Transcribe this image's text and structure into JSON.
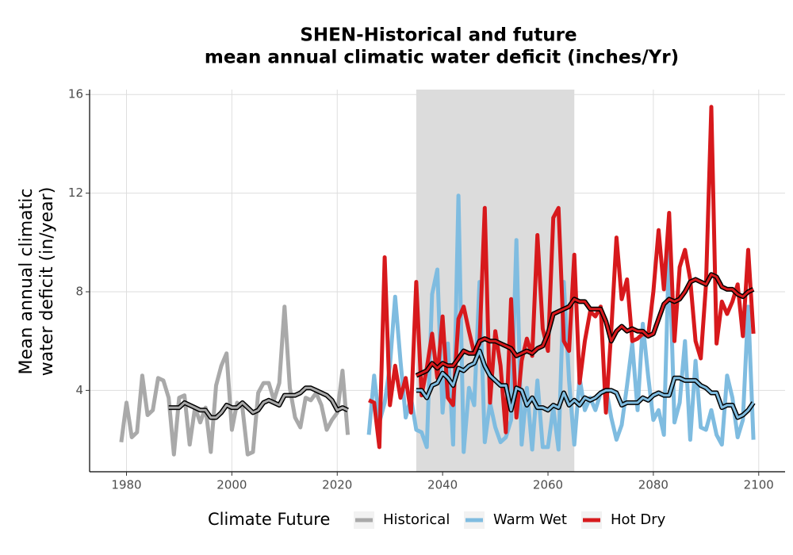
{
  "chart_data": {
    "type": "line",
    "title": [
      "SHEN-Historical and future",
      "mean annual climatic water deficit (inches/Yr)"
    ],
    "ylabel": [
      "Mean annual climatic",
      "water deficit (in/year)"
    ],
    "legend_title": "Climate Future",
    "legend_position": "bottom",
    "grid": true,
    "highlight_range": [
      2035,
      2065
    ],
    "xlim": [
      1973,
      2105
    ],
    "ylim": [
      0.7,
      16.2
    ],
    "xticks": [
      1980,
      2000,
      2020,
      2040,
      2060,
      2080,
      2100
    ],
    "yticks": [
      4,
      8,
      12,
      16
    ],
    "series": [
      {
        "name": "Historical",
        "color": "#a9a9a9",
        "x": [
          1979,
          1980,
          1981,
          1982,
          1983,
          1984,
          1985,
          1986,
          1987,
          1988,
          1989,
          1990,
          1991,
          1992,
          1993,
          1994,
          1995,
          1996,
          1997,
          1998,
          1999,
          2000,
          2001,
          2002,
          2003,
          2004,
          2005,
          2006,
          2007,
          2008,
          2009,
          2010,
          2011,
          2012,
          2013,
          2014,
          2015,
          2016,
          2017,
          2018,
          2019,
          2020,
          2021,
          2022
        ],
        "values": [
          1.9,
          3.5,
          2.1,
          2.3,
          4.6,
          3.0,
          3.2,
          4.5,
          4.4,
          3.7,
          1.4,
          3.7,
          3.8,
          1.8,
          3.3,
          2.7,
          3.3,
          1.5,
          4.2,
          5.0,
          5.5,
          2.4,
          3.5,
          3.3,
          1.4,
          1.5,
          3.9,
          4.3,
          4.3,
          3.6,
          4.3,
          7.4,
          4.1,
          2.9,
          2.5,
          3.7,
          3.6,
          3.9,
          3.4,
          2.4,
          2.8,
          3.1,
          4.8,
          2.2
        ],
        "rolling": [
          null,
          null,
          null,
          null,
          null,
          null,
          null,
          null,
          null,
          3.3,
          3.3,
          3.3,
          3.5,
          3.4,
          3.3,
          3.2,
          3.2,
          2.9,
          2.9,
          3.1,
          3.4,
          3.3,
          3.3,
          3.5,
          3.3,
          3.1,
          3.2,
          3.5,
          3.6,
          3.5,
          3.4,
          3.8,
          3.8,
          3.8,
          3.9,
          4.1,
          4.1,
          4.0,
          3.9,
          3.8,
          3.6,
          3.2,
          3.3,
          3.2
        ]
      },
      {
        "name": "Warm Wet",
        "color": "#7fbce0",
        "x": [
          2026,
          2027,
          2028,
          2029,
          2030,
          2031,
          2032,
          2033,
          2034,
          2035,
          2036,
          2037,
          2038,
          2039,
          2040,
          2041,
          2042,
          2043,
          2044,
          2045,
          2046,
          2047,
          2048,
          2049,
          2050,
          2051,
          2052,
          2053,
          2054,
          2055,
          2056,
          2057,
          2058,
          2059,
          2060,
          2061,
          2062,
          2063,
          2064,
          2065,
          2066,
          2067,
          2068,
          2069,
          2070,
          2071,
          2072,
          2073,
          2074,
          2075,
          2076,
          2077,
          2078,
          2079,
          2080,
          2081,
          2082,
          2083,
          2084,
          2085,
          2086,
          2087,
          2088,
          2089,
          2090,
          2091,
          2092,
          2093,
          2094,
          2095,
          2096,
          2097,
          2098,
          2099
        ],
        "values": [
          2.2,
          4.6,
          2.7,
          3.5,
          5.0,
          7.8,
          5.2,
          2.9,
          3.7,
          2.4,
          2.3,
          1.7,
          7.9,
          8.9,
          3.1,
          5.9,
          1.8,
          11.9,
          1.5,
          4.1,
          3.4,
          8.4,
          1.9,
          3.5,
          2.5,
          1.9,
          2.1,
          2.8,
          10.1,
          1.8,
          4.1,
          1.6,
          4.4,
          1.7,
          1.7,
          3.3,
          1.6,
          8.4,
          4.4,
          1.8,
          4.5,
          3.2,
          3.7,
          3.2,
          3.9,
          4.1,
          2.9,
          2.0,
          2.6,
          4.2,
          5.9,
          3.2,
          6.7,
          4.6,
          2.8,
          3.2,
          2.2,
          9.9,
          2.7,
          3.5,
          6.0,
          2.0,
          5.2,
          2.5,
          2.4,
          3.2,
          2.2,
          1.8,
          4.6,
          3.7,
          2.1,
          2.8,
          7.4,
          2.0
        ],
        "rolling": [
          null,
          null,
          null,
          null,
          null,
          null,
          null,
          null,
          null,
          4.0,
          4.0,
          3.7,
          4.2,
          4.3,
          4.7,
          4.5,
          4.2,
          4.9,
          4.8,
          5.0,
          5.1,
          5.6,
          5.0,
          4.6,
          4.4,
          4.2,
          4.2,
          3.2,
          4.1,
          4.0,
          3.4,
          3.7,
          3.3,
          3.3,
          3.2,
          3.4,
          3.3,
          3.9,
          3.4,
          3.6,
          3.4,
          3.7,
          3.6,
          3.7,
          3.9,
          4.0,
          4.0,
          3.9,
          3.4,
          3.5,
          3.5,
          3.5,
          3.7,
          3.6,
          3.8,
          3.9,
          3.8,
          3.8,
          4.5,
          4.5,
          4.4,
          4.4,
          4.4,
          4.2,
          4.1,
          3.9,
          3.9,
          3.3,
          3.4,
          3.4,
          2.9,
          3.0,
          3.2,
          3.5
        ]
      },
      {
        "name": "Hot Dry",
        "color": "#d7191c",
        "x": [
          2026,
          2027,
          2028,
          2029,
          2030,
          2031,
          2032,
          2033,
          2034,
          2035,
          2036,
          2037,
          2038,
          2039,
          2040,
          2041,
          2042,
          2043,
          2044,
          2045,
          2046,
          2047,
          2048,
          2049,
          2050,
          2051,
          2052,
          2053,
          2054,
          2055,
          2056,
          2057,
          2058,
          2059,
          2060,
          2061,
          2062,
          2063,
          2064,
          2065,
          2066,
          2067,
          2068,
          2069,
          2070,
          2071,
          2072,
          2073,
          2074,
          2075,
          2076,
          2077,
          2078,
          2079,
          2080,
          2081,
          2082,
          2083,
          2084,
          2085,
          2086,
          2087,
          2088,
          2089,
          2090,
          2091,
          2092,
          2093,
          2094,
          2095,
          2096,
          2097,
          2098,
          2099
        ],
        "values": [
          3.6,
          3.5,
          1.7,
          9.4,
          3.4,
          5.0,
          3.7,
          4.5,
          3.1,
          8.4,
          3.8,
          4.9,
          6.3,
          4.5,
          7.0,
          3.7,
          3.4,
          6.9,
          7.4,
          6.4,
          5.5,
          5.9,
          11.4,
          3.5,
          6.4,
          5.0,
          2.3,
          7.7,
          2.9,
          5.2,
          6.1,
          5.4,
          10.3,
          6.5,
          5.6,
          11.0,
          11.4,
          6.0,
          5.6,
          9.5,
          4.3,
          6.0,
          7.2,
          7.0,
          7.4,
          3.1,
          6.4,
          10.2,
          7.7,
          8.5,
          6.0,
          6.1,
          6.3,
          6.2,
          8.0,
          10.5,
          8.1,
          11.2,
          6.0,
          9.0,
          9.7,
          8.5,
          6.0,
          5.3,
          8.3,
          15.5,
          5.9,
          7.6,
          7.1,
          7.6,
          8.3,
          6.2,
          9.7,
          6.3
        ],
        "rolling": [
          null,
          null,
          null,
          null,
          null,
          null,
          null,
          null,
          null,
          4.6,
          4.7,
          4.8,
          5.1,
          4.9,
          5.1,
          5.0,
          5.0,
          5.3,
          5.6,
          5.5,
          5.5,
          6.0,
          6.1,
          6.0,
          6.0,
          5.9,
          5.8,
          5.7,
          5.4,
          5.5,
          5.6,
          5.5,
          5.7,
          5.8,
          6.3,
          7.1,
          7.2,
          7.3,
          7.4,
          7.7,
          7.6,
          7.6,
          7.3,
          7.3,
          7.3,
          6.8,
          6.0,
          6.4,
          6.6,
          6.4,
          6.5,
          6.4,
          6.4,
          6.2,
          6.3,
          6.9,
          7.5,
          7.7,
          7.6,
          7.7,
          8.0,
          8.4,
          8.5,
          8.4,
          8.3,
          8.7,
          8.6,
          8.2,
          8.1,
          8.1,
          7.9,
          7.8,
          8.0,
          8.1
        ]
      }
    ]
  }
}
